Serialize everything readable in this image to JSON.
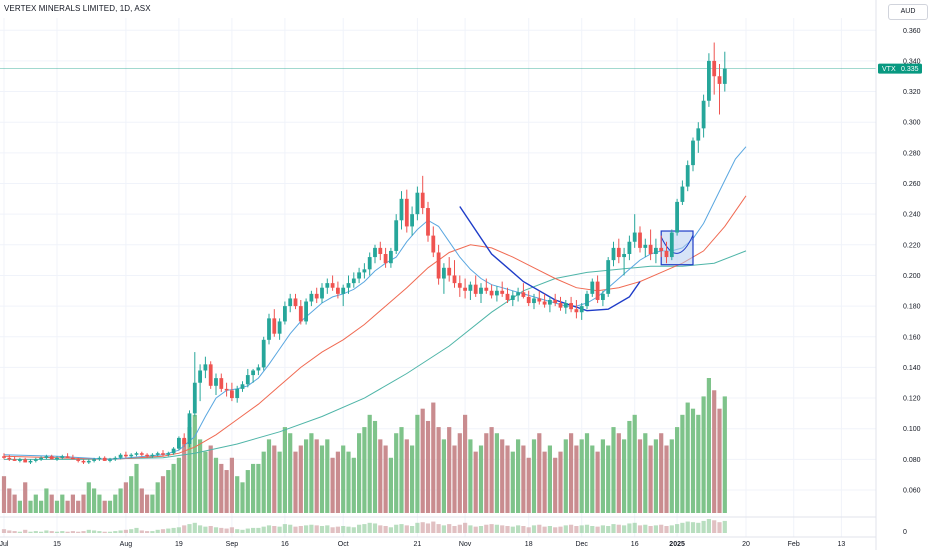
{
  "header": {
    "title": "VERTEX MINERALS LIMITED, 1D, ASX",
    "currency": "AUD"
  },
  "price_tag": {
    "symbol": "VTX",
    "value": "0.335"
  },
  "colors": {
    "up": "#26a69a",
    "down": "#ef5350",
    "vol_up": "#7ec38a",
    "vol_down": "#c98c8f",
    "ma_fast": "#5aa7e0",
    "ma_mid": "#f06a52",
    "ma_slow": "#4fb5a8",
    "pattern": "#1e3cc8",
    "pattern_fill": "#b7cdf1",
    "tag": "#089981"
  },
  "chart_data": {
    "type": "candlestick",
    "title": "VERTEX MINERALS LIMITED, 1D, ASX",
    "ylim": [
      0.045,
      0.368
    ],
    "y_ticks": [
      "0.360",
      "0.340",
      "0.320",
      "0.300",
      "0.280",
      "0.260",
      "0.240",
      "0.220",
      "0.200",
      "0.180",
      "0.160",
      "0.140",
      "0.120",
      "0.100",
      "0.080",
      "0.060"
    ],
    "x_ticks": [
      {
        "label": "Jul",
        "i": 0
      },
      {
        "label": "15",
        "i": 10
      },
      {
        "label": "Aug",
        "i": 23
      },
      {
        "label": "19",
        "i": 33
      },
      {
        "label": "Sep",
        "i": 43
      },
      {
        "label": "16",
        "i": 53
      },
      {
        "label": "Oct",
        "i": 64
      },
      {
        "label": "21",
        "i": 78
      },
      {
        "label": "Nov",
        "i": 87
      },
      {
        "label": "18",
        "i": 99
      },
      {
        "label": "Dec",
        "i": 109
      },
      {
        "label": "16",
        "i": 119
      },
      {
        "label": "2025",
        "i": 127,
        "bold": true
      },
      {
        "label": "20",
        "i": 140
      },
      {
        "label": "Feb",
        "i": 149
      },
      {
        "label": "13",
        "i": 158
      }
    ],
    "osc_tick": "0",
    "candles": [
      [
        0.082,
        0.084,
        0.08,
        0.081
      ],
      [
        0.081,
        0.083,
        0.079,
        0.08
      ],
      [
        0.08,
        0.082,
        0.079,
        0.079
      ],
      [
        0.079,
        0.081,
        0.078,
        0.08
      ],
      [
        0.08,
        0.081,
        0.078,
        0.078
      ],
      [
        0.078,
        0.08,
        0.077,
        0.079
      ],
      [
        0.079,
        0.081,
        0.078,
        0.08
      ],
      [
        0.08,
        0.082,
        0.079,
        0.081
      ],
      [
        0.081,
        0.083,
        0.08,
        0.082
      ],
      [
        0.082,
        0.083,
        0.08,
        0.08
      ],
      [
        0.08,
        0.082,
        0.079,
        0.081
      ],
      [
        0.081,
        0.083,
        0.08,
        0.082
      ],
      [
        0.082,
        0.084,
        0.081,
        0.081
      ],
      [
        0.081,
        0.083,
        0.08,
        0.08
      ],
      [
        0.08,
        0.081,
        0.078,
        0.079
      ],
      [
        0.079,
        0.08,
        0.077,
        0.078
      ],
      [
        0.078,
        0.08,
        0.077,
        0.079
      ],
      [
        0.079,
        0.081,
        0.078,
        0.08
      ],
      [
        0.08,
        0.082,
        0.079,
        0.081
      ],
      [
        0.081,
        0.082,
        0.079,
        0.079
      ],
      [
        0.079,
        0.081,
        0.078,
        0.08
      ],
      [
        0.08,
        0.082,
        0.079,
        0.081
      ],
      [
        0.081,
        0.084,
        0.08,
        0.083
      ],
      [
        0.083,
        0.085,
        0.081,
        0.082
      ],
      [
        0.082,
        0.084,
        0.081,
        0.083
      ],
      [
        0.083,
        0.085,
        0.082,
        0.084
      ],
      [
        0.084,
        0.085,
        0.082,
        0.083
      ],
      [
        0.083,
        0.084,
        0.081,
        0.082
      ],
      [
        0.082,
        0.084,
        0.081,
        0.083
      ],
      [
        0.083,
        0.085,
        0.082,
        0.084
      ],
      [
        0.084,
        0.086,
        0.082,
        0.083
      ],
      [
        0.083,
        0.085,
        0.082,
        0.084
      ],
      [
        0.084,
        0.088,
        0.083,
        0.087
      ],
      [
        0.087,
        0.095,
        0.086,
        0.094
      ],
      [
        0.094,
        0.097,
        0.088,
        0.09
      ],
      [
        0.09,
        0.112,
        0.088,
        0.11
      ],
      [
        0.11,
        0.15,
        0.108,
        0.13
      ],
      [
        0.13,
        0.142,
        0.118,
        0.138
      ],
      [
        0.138,
        0.147,
        0.133,
        0.142
      ],
      [
        0.142,
        0.144,
        0.126,
        0.128
      ],
      [
        0.128,
        0.136,
        0.122,
        0.133
      ],
      [
        0.133,
        0.136,
        0.124,
        0.126
      ],
      [
        0.126,
        0.13,
        0.121,
        0.125
      ],
      [
        0.125,
        0.13,
        0.118,
        0.12
      ],
      [
        0.12,
        0.128,
        0.117,
        0.126
      ],
      [
        0.126,
        0.131,
        0.124,
        0.129
      ],
      [
        0.129,
        0.139,
        0.127,
        0.135
      ],
      [
        0.135,
        0.139,
        0.13,
        0.138
      ],
      [
        0.138,
        0.142,
        0.135,
        0.14
      ],
      [
        0.14,
        0.16,
        0.138,
        0.158
      ],
      [
        0.158,
        0.175,
        0.155,
        0.172
      ],
      [
        0.172,
        0.178,
        0.16,
        0.162
      ],
      [
        0.162,
        0.172,
        0.158,
        0.17
      ],
      [
        0.17,
        0.183,
        0.168,
        0.18
      ],
      [
        0.18,
        0.188,
        0.176,
        0.185
      ],
      [
        0.185,
        0.188,
        0.178,
        0.18
      ],
      [
        0.18,
        0.184,
        0.168,
        0.17
      ],
      [
        0.17,
        0.185,
        0.168,
        0.183
      ],
      [
        0.183,
        0.19,
        0.18,
        0.188
      ],
      [
        0.188,
        0.192,
        0.182,
        0.185
      ],
      [
        0.185,
        0.195,
        0.182,
        0.192
      ],
      [
        0.192,
        0.198,
        0.188,
        0.195
      ],
      [
        0.195,
        0.2,
        0.19,
        0.192
      ],
      [
        0.192,
        0.196,
        0.185,
        0.188
      ],
      [
        0.188,
        0.194,
        0.18,
        0.192
      ],
      [
        0.192,
        0.2,
        0.188,
        0.195
      ],
      [
        0.195,
        0.202,
        0.192,
        0.198
      ],
      [
        0.198,
        0.205,
        0.195,
        0.202
      ],
      [
        0.202,
        0.208,
        0.198,
        0.204
      ],
      [
        0.204,
        0.215,
        0.2,
        0.212
      ],
      [
        0.212,
        0.22,
        0.208,
        0.218
      ],
      [
        0.218,
        0.222,
        0.21,
        0.214
      ],
      [
        0.214,
        0.218,
        0.205,
        0.208
      ],
      [
        0.208,
        0.218,
        0.205,
        0.216
      ],
      [
        0.216,
        0.24,
        0.214,
        0.236
      ],
      [
        0.236,
        0.255,
        0.23,
        0.25
      ],
      [
        0.25,
        0.256,
        0.228,
        0.232
      ],
      [
        0.232,
        0.245,
        0.226,
        0.24
      ],
      [
        0.24,
        0.258,
        0.236,
        0.254
      ],
      [
        0.254,
        0.265,
        0.24,
        0.244
      ],
      [
        0.244,
        0.248,
        0.222,
        0.226
      ],
      [
        0.226,
        0.232,
        0.212,
        0.215
      ],
      [
        0.215,
        0.22,
        0.194,
        0.198
      ],
      [
        0.198,
        0.208,
        0.188,
        0.205
      ],
      [
        0.205,
        0.212,
        0.196,
        0.2
      ],
      [
        0.2,
        0.21,
        0.192,
        0.195
      ],
      [
        0.195,
        0.2,
        0.186,
        0.192
      ],
      [
        0.192,
        0.198,
        0.185,
        0.19
      ],
      [
        0.19,
        0.196,
        0.184,
        0.194
      ],
      [
        0.194,
        0.2,
        0.186,
        0.188
      ],
      [
        0.188,
        0.195,
        0.182,
        0.192
      ],
      [
        0.192,
        0.198,
        0.188,
        0.19
      ],
      [
        0.19,
        0.194,
        0.185,
        0.187
      ],
      [
        0.187,
        0.193,
        0.183,
        0.19
      ],
      [
        0.19,
        0.196,
        0.186,
        0.188
      ],
      [
        0.188,
        0.192,
        0.182,
        0.184
      ],
      [
        0.184,
        0.19,
        0.18,
        0.187
      ],
      [
        0.187,
        0.192,
        0.183,
        0.189
      ],
      [
        0.189,
        0.195,
        0.185,
        0.186
      ],
      [
        0.186,
        0.19,
        0.18,
        0.182
      ],
      [
        0.182,
        0.188,
        0.178,
        0.185
      ],
      [
        0.185,
        0.19,
        0.181,
        0.183
      ],
      [
        0.183,
        0.188,
        0.179,
        0.181
      ],
      [
        0.181,
        0.186,
        0.176,
        0.184
      ],
      [
        0.184,
        0.188,
        0.18,
        0.182
      ],
      [
        0.182,
        0.186,
        0.177,
        0.179
      ],
      [
        0.179,
        0.184,
        0.175,
        0.182
      ],
      [
        0.182,
        0.186,
        0.176,
        0.178
      ],
      [
        0.178,
        0.184,
        0.172,
        0.176
      ],
      [
        0.176,
        0.182,
        0.171,
        0.18
      ],
      [
        0.18,
        0.19,
        0.178,
        0.188
      ],
      [
        0.188,
        0.198,
        0.186,
        0.196
      ],
      [
        0.196,
        0.2,
        0.182,
        0.184
      ],
      [
        0.184,
        0.19,
        0.18,
        0.188
      ],
      [
        0.188,
        0.212,
        0.186,
        0.21
      ],
      [
        0.21,
        0.222,
        0.206,
        0.218
      ],
      [
        0.218,
        0.224,
        0.208,
        0.212
      ],
      [
        0.212,
        0.218,
        0.2,
        0.214
      ],
      [
        0.214,
        0.226,
        0.21,
        0.222
      ],
      [
        0.222,
        0.24,
        0.218,
        0.228
      ],
      [
        0.228,
        0.232,
        0.215,
        0.218
      ],
      [
        0.218,
        0.224,
        0.212,
        0.22
      ],
      [
        0.22,
        0.23,
        0.21,
        0.214
      ],
      [
        0.214,
        0.224,
        0.208,
        0.218
      ],
      [
        0.218,
        0.226,
        0.212,
        0.216
      ],
      [
        0.216,
        0.222,
        0.208,
        0.212
      ],
      [
        0.212,
        0.23,
        0.21,
        0.228
      ],
      [
        0.228,
        0.25,
        0.226,
        0.248
      ],
      [
        0.248,
        0.262,
        0.246,
        0.258
      ],
      [
        0.258,
        0.275,
        0.255,
        0.272
      ],
      [
        0.272,
        0.29,
        0.268,
        0.288
      ],
      [
        0.288,
        0.3,
        0.28,
        0.296
      ],
      [
        0.296,
        0.318,
        0.29,
        0.314
      ],
      [
        0.314,
        0.345,
        0.31,
        0.34
      ],
      [
        0.34,
        0.352,
        0.318,
        0.33
      ],
      [
        0.33,
        0.338,
        0.305,
        0.325
      ],
      [
        0.325,
        0.346,
        0.32,
        0.335
      ]
    ],
    "volume": [
      6,
      4,
      3,
      2,
      5,
      2,
      3,
      2,
      4,
      3,
      2,
      3,
      2,
      3,
      2,
      3,
      5,
      4,
      3,
      2,
      2,
      3,
      4,
      5,
      6,
      8,
      4,
      3,
      3,
      5,
      6,
      7,
      8,
      9,
      12,
      14,
      16,
      12,
      10,
      11,
      9,
      8,
      7,
      9,
      6,
      5,
      7,
      8,
      8,
      10,
      12,
      11,
      10,
      14,
      13,
      10,
      11,
      12,
      13,
      12,
      11,
      12,
      9,
      10,
      11,
      10,
      9,
      13,
      14,
      16,
      15,
      12,
      11,
      9,
      13,
      14,
      12,
      11,
      16,
      17,
      15,
      18,
      14,
      12,
      14,
      11,
      13,
      16,
      12,
      10,
      11,
      13,
      14,
      13,
      12,
      11,
      10,
      12,
      11,
      9,
      12,
      13,
      10,
      11,
      9,
      10,
      12,
      13,
      11,
      12,
      13,
      11,
      10,
      12,
      11,
      14,
      13,
      12,
      15,
      16,
      12,
      13,
      11,
      12,
      13,
      11,
      12,
      14,
      16,
      18,
      17,
      16,
      19,
      22,
      20,
      17,
      19
    ],
    "ma_fast": [
      [
        0,
        0.083
      ],
      [
        10,
        0.082
      ],
      [
        20,
        0.08
      ],
      [
        30,
        0.083
      ],
      [
        33,
        0.086
      ],
      [
        36,
        0.095
      ],
      [
        38,
        0.108
      ],
      [
        40,
        0.12
      ],
      [
        42,
        0.125
      ],
      [
        44,
        0.126
      ],
      [
        46,
        0.128
      ],
      [
        48,
        0.133
      ],
      [
        50,
        0.142
      ],
      [
        52,
        0.152
      ],
      [
        54,
        0.162
      ],
      [
        56,
        0.17
      ],
      [
        58,
        0.176
      ],
      [
        60,
        0.182
      ],
      [
        62,
        0.186
      ],
      [
        64,
        0.188
      ],
      [
        66,
        0.191
      ],
      [
        68,
        0.196
      ],
      [
        70,
        0.203
      ],
      [
        72,
        0.208
      ],
      [
        74,
        0.212
      ],
      [
        76,
        0.222
      ],
      [
        78,
        0.23
      ],
      [
        80,
        0.236
      ],
      [
        82,
        0.232
      ],
      [
        84,
        0.222
      ],
      [
        86,
        0.212
      ],
      [
        88,
        0.204
      ],
      [
        90,
        0.198
      ],
      [
        92,
        0.194
      ],
      [
        94,
        0.192
      ],
      [
        96,
        0.19
      ],
      [
        98,
        0.188
      ],
      [
        100,
        0.186
      ],
      [
        102,
        0.184
      ],
      [
        104,
        0.182
      ],
      [
        106,
        0.18
      ],
      [
        108,
        0.18
      ],
      [
        110,
        0.182
      ],
      [
        112,
        0.186
      ],
      [
        114,
        0.192
      ],
      [
        116,
        0.198
      ],
      [
        118,
        0.204
      ],
      [
        120,
        0.21
      ],
      [
        122,
        0.214
      ],
      [
        124,
        0.216
      ],
      [
        126,
        0.216
      ],
      [
        128,
        0.218
      ],
      [
        130,
        0.224
      ],
      [
        132,
        0.234
      ],
      [
        134,
        0.248
      ],
      [
        136,
        0.262
      ],
      [
        138,
        0.276
      ],
      [
        140,
        0.284
      ]
    ],
    "ma_mid": [
      [
        0,
        0.082
      ],
      [
        10,
        0.081
      ],
      [
        20,
        0.08
      ],
      [
        30,
        0.082
      ],
      [
        33,
        0.084
      ],
      [
        36,
        0.088
      ],
      [
        40,
        0.096
      ],
      [
        44,
        0.106
      ],
      [
        48,
        0.116
      ],
      [
        52,
        0.128
      ],
      [
        56,
        0.14
      ],
      [
        60,
        0.15
      ],
      [
        64,
        0.158
      ],
      [
        68,
        0.168
      ],
      [
        72,
        0.18
      ],
      [
        76,
        0.192
      ],
      [
        80,
        0.205
      ],
      [
        84,
        0.215
      ],
      [
        88,
        0.22
      ],
      [
        92,
        0.218
      ],
      [
        96,
        0.212
      ],
      [
        100,
        0.205
      ],
      [
        104,
        0.198
      ],
      [
        108,
        0.192
      ],
      [
        112,
        0.19
      ],
      [
        116,
        0.192
      ],
      [
        120,
        0.196
      ],
      [
        124,
        0.202
      ],
      [
        128,
        0.208
      ],
      [
        132,
        0.216
      ],
      [
        136,
        0.232
      ],
      [
        140,
        0.252
      ]
    ],
    "ma_slow": [
      [
        0,
        0.08
      ],
      [
        15,
        0.08
      ],
      [
        30,
        0.081
      ],
      [
        36,
        0.084
      ],
      [
        44,
        0.09
      ],
      [
        52,
        0.098
      ],
      [
        60,
        0.108
      ],
      [
        68,
        0.12
      ],
      [
        76,
        0.136
      ],
      [
        84,
        0.154
      ],
      [
        92,
        0.176
      ],
      [
        98,
        0.19
      ],
      [
        104,
        0.198
      ],
      [
        110,
        0.202
      ],
      [
        116,
        0.204
      ],
      [
        122,
        0.206
      ],
      [
        128,
        0.206
      ],
      [
        134,
        0.208
      ],
      [
        140,
        0.216
      ]
    ],
    "rounding_curve": [
      [
        86,
        0.245
      ],
      [
        92,
        0.214
      ],
      [
        98,
        0.196
      ],
      [
        104,
        0.184
      ],
      [
        110,
        0.177
      ],
      [
        114,
        0.178
      ],
      [
        118,
        0.186
      ],
      [
        120,
        0.196
      ]
    ],
    "box": {
      "i0": 124,
      "i1": 130,
      "y0": 0.207,
      "y1": 0.229
    }
  }
}
